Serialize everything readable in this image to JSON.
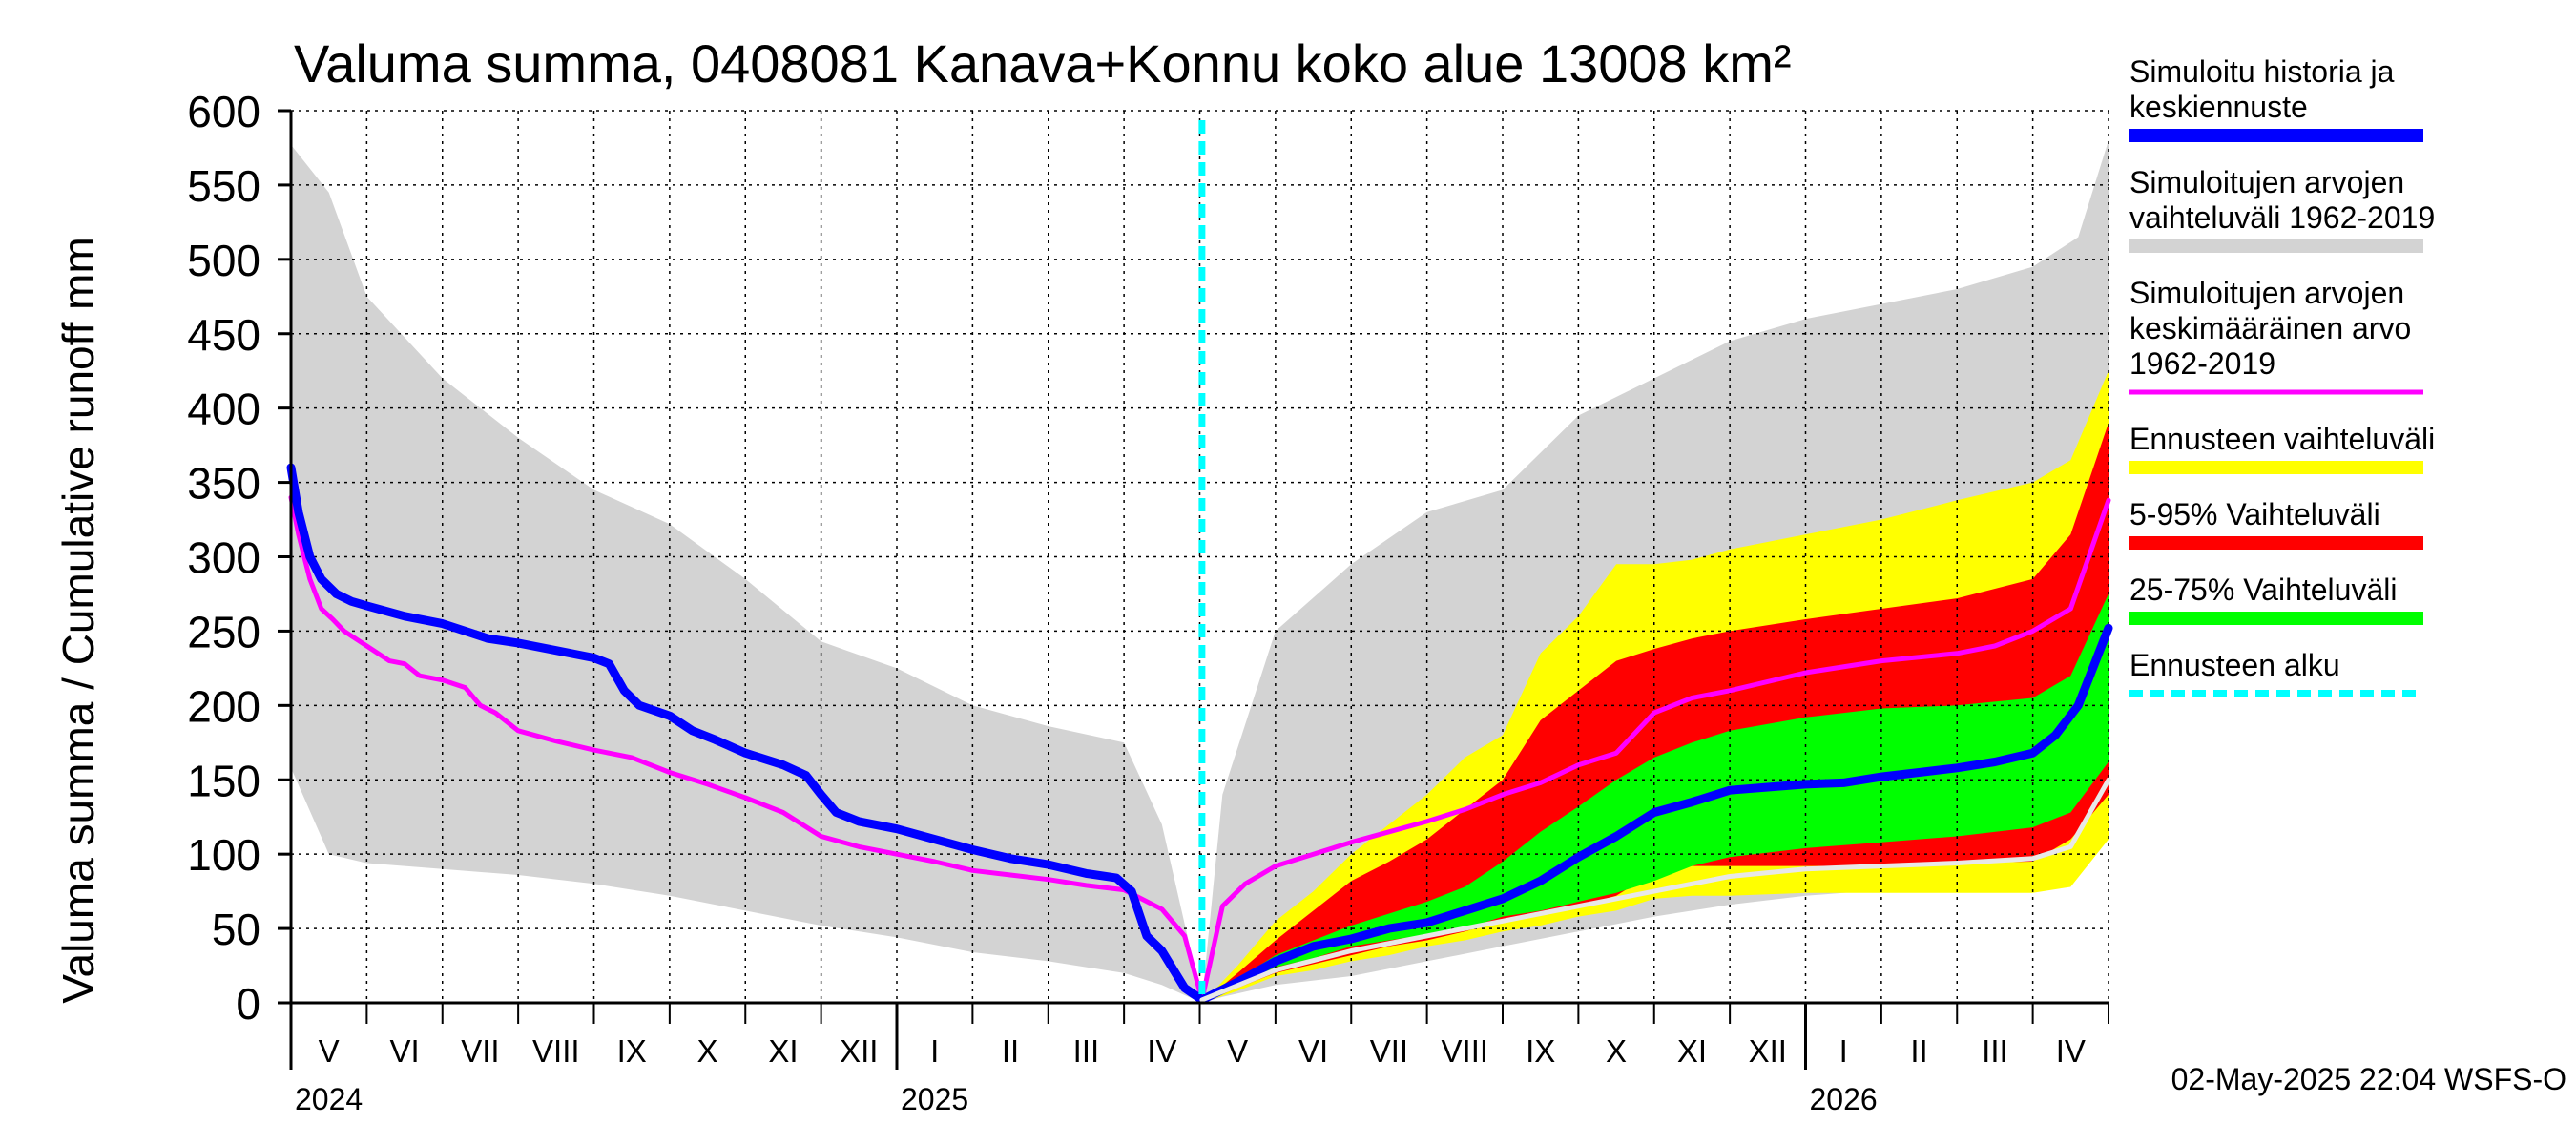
{
  "chart_data": {
    "type": "area",
    "title": "Valuma summa, 0408081 Kanava+Konnu koko alue 13008 km²",
    "ylabel": "Valuma summa / Cumulative runoff    mm",
    "ylim": [
      0,
      600
    ],
    "yticks": [
      0,
      50,
      100,
      150,
      200,
      250,
      300,
      350,
      400,
      450,
      500,
      550,
      600
    ],
    "x_unit": "months since 2024-04-01",
    "xlim": [
      1.0,
      25.0
    ],
    "forecast_start": 13.03,
    "months": [
      {
        "label": "V",
        "start": 1
      },
      {
        "label": "VI",
        "start": 2
      },
      {
        "label": "VII",
        "start": 3
      },
      {
        "label": "VIII",
        "start": 4
      },
      {
        "label": "IX",
        "start": 5
      },
      {
        "label": "X",
        "start": 6
      },
      {
        "label": "XI",
        "start": 7
      },
      {
        "label": "XII",
        "start": 8
      },
      {
        "label": "I",
        "start": 9
      },
      {
        "label": "II",
        "start": 10
      },
      {
        "label": "III",
        "start": 11
      },
      {
        "label": "IV",
        "start": 12
      },
      {
        "label": "V",
        "start": 13
      },
      {
        "label": "VI",
        "start": 14
      },
      {
        "label": "VII",
        "start": 15
      },
      {
        "label": "VIII",
        "start": 16
      },
      {
        "label": "IX",
        "start": 17
      },
      {
        "label": "X",
        "start": 18
      },
      {
        "label": "XI",
        "start": 19
      },
      {
        "label": "XII",
        "start": 20
      },
      {
        "label": "I",
        "start": 21
      },
      {
        "label": "II",
        "start": 22
      },
      {
        "label": "III",
        "start": 23
      },
      {
        "label": "IV",
        "start": 24
      }
    ],
    "year_marks": [
      {
        "label": "2024",
        "at": 1
      },
      {
        "label": "2025",
        "at": 9
      },
      {
        "label": "2026",
        "at": 21
      }
    ],
    "bands": [
      {
        "name": "Simuloitujen arvojen vaihteluväli 1962-2019",
        "color": "#d3d3d3",
        "x": [
          1.0,
          1.5,
          2.0,
          3.0,
          4.0,
          5.0,
          6.0,
          7.0,
          8.0,
          9.0,
          10.0,
          11.0,
          12.0,
          12.5,
          13.03,
          13.3,
          14.0,
          15.0,
          16.0,
          17.0,
          18.0,
          19.0,
          20.0,
          21.0,
          22.0,
          23.0,
          24.0,
          24.6,
          25.0
        ],
        "upper": [
          577,
          545,
          475,
          420,
          380,
          345,
          322,
          285,
          243,
          225,
          200,
          186,
          175,
          120,
          2,
          140,
          250,
          295,
          330,
          345,
          395,
          420,
          445,
          460,
          470,
          480,
          495,
          515,
          580
        ],
        "lower": [
          158,
          100,
          94,
          90,
          86,
          80,
          72,
          62,
          52,
          44,
          34,
          28,
          20,
          12,
          0,
          4,
          12,
          18,
          28,
          38,
          48,
          58,
          66,
          72,
          76,
          80,
          82,
          86,
          110
        ]
      },
      {
        "name": "Ennusteen vaihteluväli",
        "color": "#ffff00",
        "x": [
          13.03,
          13.5,
          14.0,
          14.5,
          15.0,
          15.5,
          16.0,
          16.5,
          17.0,
          17.5,
          18.0,
          18.5,
          19.0,
          19.5,
          20.0,
          21.0,
          22.0,
          23.0,
          24.0,
          24.5,
          25.0
        ],
        "upper": [
          0,
          25,
          55,
          75,
          100,
          120,
          140,
          165,
          180,
          235,
          260,
          295,
          295,
          298,
          305,
          315,
          325,
          338,
          350,
          365,
          425
        ],
        "lower": [
          0,
          8,
          18,
          22,
          28,
          32,
          38,
          42,
          48,
          52,
          58,
          62,
          70,
          72,
          72,
          74,
          74,
          74,
          74,
          78,
          110
        ]
      },
      {
        "name": "5-95% Vaihteluväli",
        "color": "#ff0000",
        "x": [
          13.03,
          13.5,
          14.0,
          14.5,
          15.0,
          15.5,
          16.0,
          16.5,
          17.0,
          17.5,
          18.0,
          18.5,
          19.0,
          19.5,
          20.0,
          21.0,
          22.0,
          23.0,
          24.0,
          24.5,
          25.0
        ],
        "upper": [
          0,
          20,
          42,
          62,
          82,
          95,
          110,
          130,
          150,
          190,
          210,
          230,
          238,
          245,
          250,
          258,
          265,
          272,
          285,
          315,
          390
        ],
        "lower": [
          0,
          10,
          20,
          26,
          32,
          38,
          42,
          48,
          55,
          60,
          65,
          72,
          88,
          92,
          92,
          92,
          92,
          94,
          95,
          110,
          140
        ]
      },
      {
        "name": "25-75% Vaihteluväli",
        "color": "#00ff00",
        "x": [
          13.03,
          13.5,
          14.0,
          14.5,
          15.0,
          15.5,
          16.0,
          16.5,
          17.0,
          17.5,
          18.0,
          18.5,
          19.0,
          19.5,
          20.0,
          21.0,
          22.0,
          23.0,
          24.0,
          24.5,
          25.0
        ],
        "upper": [
          0,
          16,
          32,
          42,
          52,
          60,
          68,
          78,
          95,
          115,
          132,
          150,
          165,
          175,
          183,
          192,
          198,
          200,
          205,
          220,
          275
        ],
        "lower": [
          0,
          12,
          24,
          30,
          38,
          42,
          46,
          50,
          58,
          62,
          68,
          74,
          82,
          92,
          98,
          104,
          108,
          112,
          118,
          128,
          162
        ]
      }
    ],
    "series": [
      {
        "name": "Simuloitujen arvojen keskimääräinen arvo 1962-2019",
        "color": "#ff00ff",
        "width": 5,
        "x": [
          1.0,
          1.1,
          1.25,
          1.4,
          1.55,
          1.7,
          2.0,
          2.3,
          2.5,
          2.7,
          3.0,
          3.3,
          3.5,
          3.7,
          4.0,
          4.5,
          5.0,
          5.5,
          6.0,
          6.5,
          7.0,
          7.5,
          8.0,
          8.5,
          9.0,
          9.5,
          10.0,
          10.5,
          11.0,
          11.5,
          12.0,
          12.5,
          12.8,
          13.03,
          13.3,
          13.6,
          14.0,
          14.5,
          15.0,
          15.5,
          16.0,
          16.5,
          17.0,
          17.5,
          18.0,
          18.5,
          19.0,
          19.5,
          20.0,
          21.0,
          22.0,
          23.0,
          23.5,
          24.0,
          24.5,
          25.0
        ],
        "y": [
          340,
          315,
          285,
          265,
          258,
          250,
          240,
          230,
          228,
          220,
          217,
          212,
          200,
          195,
          183,
          176,
          170,
          165,
          155,
          147,
          138,
          128,
          112,
          105,
          100,
          95,
          89,
          86,
          83,
          79,
          76,
          63,
          45,
          2,
          65,
          80,
          92,
          100,
          108,
          115,
          122,
          130,
          140,
          148,
          160,
          168,
          195,
          205,
          210,
          222,
          230,
          235,
          240,
          250,
          265,
          338
        ]
      },
      {
        "name": "Simuloitu historia ja keskiennuste",
        "color": "#0000ff",
        "width": 9,
        "x": [
          1.0,
          1.1,
          1.25,
          1.4,
          1.6,
          1.8,
          2.0,
          2.5,
          3.0,
          3.3,
          3.6,
          4.0,
          4.5,
          5.0,
          5.2,
          5.4,
          5.6,
          6.0,
          6.3,
          6.6,
          7.0,
          7.5,
          7.8,
          8.0,
          8.2,
          8.5,
          9.0,
          9.5,
          10.0,
          10.5,
          11.0,
          11.5,
          11.9,
          12.1,
          12.3,
          12.5,
          12.8,
          13.03,
          13.5,
          14.0,
          14.5,
          15.0,
          15.5,
          16.0,
          16.5,
          17.0,
          17.5,
          18.0,
          18.5,
          19.0,
          19.5,
          20.0,
          20.5,
          21.0,
          21.5,
          22.0,
          22.5,
          23.0,
          23.5,
          24.0,
          24.3,
          24.6,
          25.0
        ],
        "y": [
          360,
          330,
          300,
          285,
          275,
          270,
          267,
          260,
          255,
          250,
          245,
          242,
          237,
          232,
          228,
          210,
          200,
          193,
          183,
          177,
          168,
          160,
          153,
          140,
          128,
          122,
          117,
          110,
          103,
          97,
          93,
          87,
          84,
          75,
          45,
          35,
          10,
          2,
          14,
          28,
          38,
          43,
          50,
          54,
          62,
          70,
          82,
          98,
          112,
          128,
          135,
          143,
          145,
          147,
          148,
          152,
          155,
          158,
          162,
          168,
          180,
          200,
          252
        ]
      },
      {
        "name": "Simuloitu historia (valkoinen)",
        "color": "#e8e8e8",
        "width": 5,
        "legend": false,
        "x": [
          13.03,
          14.0,
          15.0,
          16.0,
          17.0,
          18.0,
          19.0,
          20.0,
          21.0,
          22.0,
          23.0,
          24.0,
          24.5,
          25.0
        ],
        "y": [
          2,
          22,
          35,
          45,
          55,
          65,
          75,
          85,
          90,
          92,
          94,
          97,
          105,
          150
        ]
      }
    ],
    "legend": [
      {
        "label_lines": [
          "Simuloitu historia ja",
          "keskiennuste"
        ],
        "color": "#0000ff",
        "style": "thick-line"
      },
      {
        "label_lines": [
          "Simuloitujen arvojen",
          "vaihteluväli 1962-2019"
        ],
        "color": "#d3d3d3",
        "style": "thick-line"
      },
      {
        "label_lines": [
          "Simuloitujen arvojen",
          "keskimääräinen arvo",
          "   1962-2019"
        ],
        "color": "#ff00ff",
        "style": "line"
      },
      {
        "label_lines": [
          "Ennusteen vaihteluväli"
        ],
        "color": "#ffff00",
        "style": "thick-line"
      },
      {
        "label_lines": [
          "5-95% Vaihteluväli"
        ],
        "color": "#ff0000",
        "style": "thick-line"
      },
      {
        "label_lines": [
          "25-75% Vaihteluväli"
        ],
        "color": "#00ff00",
        "style": "thick-line"
      },
      {
        "label_lines": [
          "Ennusteen alku"
        ],
        "color": "#00ffff",
        "style": "dashed"
      }
    ],
    "footer": "02-May-2025 22:04 WSFS-O"
  }
}
